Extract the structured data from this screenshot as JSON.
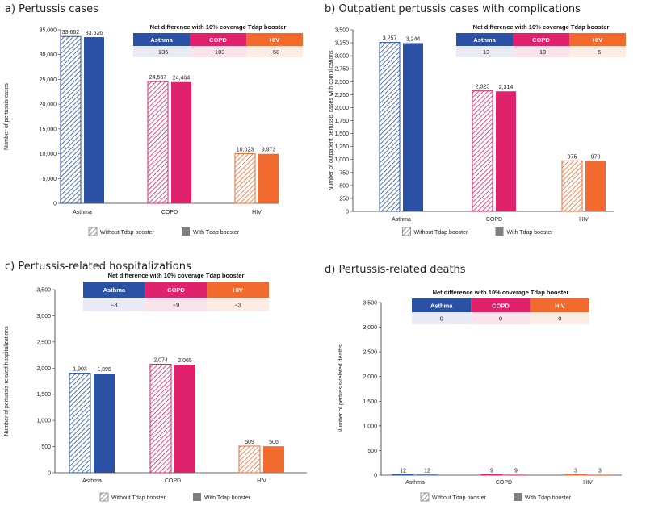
{
  "colors": {
    "Asthma": "#2a51a3",
    "COPD": "#e0216b",
    "HIV": "#f26a2e",
    "Asthma_light": "#e8ebf5",
    "COPD_light": "#fbe3ec",
    "HIV_light": "#fdece4",
    "legend_gray": "#808080"
  },
  "chart_data": [
    {
      "type": "bar",
      "title": "a) Pertussis cases",
      "ylabel": "Number of pertussis cases",
      "xlabel": "",
      "ylim": [
        0,
        35000
      ],
      "ytick_step": 5000,
      "ytick_labels": [
        "0",
        "5,000",
        "10,000",
        "15,000",
        "20,000",
        "25,000",
        "30,000",
        "35,000"
      ],
      "categories": [
        "Asthma",
        "COPD",
        "HIV"
      ],
      "series": [
        {
          "name": "Without Tdap booster",
          "values": [
            33662,
            24567,
            10023
          ],
          "labels": [
            "33,662",
            "24,567",
            "10,023"
          ]
        },
        {
          "name": "With Tdap booster",
          "values": [
            33526,
            24464,
            9973
          ],
          "labels": [
            "33,526",
            "24,464",
            "9,973"
          ]
        }
      ],
      "table": {
        "title": "Net difference with 10% coverage Tdap booster",
        "headers": [
          "Asthma",
          "COPD",
          "HIV"
        ],
        "values": [
          "−135",
          "−103",
          "−50"
        ]
      },
      "legend": [
        "Without Tdap booster",
        "With Tdap booster"
      ]
    },
    {
      "type": "bar",
      "title": "b) Outpatient pertussis cases with complications",
      "ylabel": "Number of outpatient pertussis cases with complications",
      "xlabel": "",
      "ylim": [
        0,
        3500
      ],
      "ytick_step": 250,
      "ytick_labels": [
        "0",
        "250",
        "500",
        "750",
        "1,000",
        "1,250",
        "1,500",
        "1,750",
        "2,000",
        "2,250",
        "2,500",
        "2,750",
        "3,000",
        "3,250",
        "3,500"
      ],
      "categories": [
        "Asthma",
        "COPD",
        "HIV"
      ],
      "series": [
        {
          "name": "Without Tdap booster",
          "values": [
            3257,
            2323,
            975
          ],
          "labels": [
            "3,257",
            "2,323",
            "975"
          ]
        },
        {
          "name": "With Tdap booster",
          "values": [
            3244,
            2314,
            970
          ],
          "labels": [
            "3,244",
            "2,314",
            "970"
          ]
        }
      ],
      "table": {
        "title": "Net difference with 10% coverage Tdap booster",
        "headers": [
          "Asthma",
          "COPD",
          "HIV"
        ],
        "values": [
          "−13",
          "−10",
          "−5"
        ]
      },
      "legend": [
        "Without Tdap booster",
        "With Tdap booster"
      ]
    },
    {
      "type": "bar",
      "title": "c) Pertussis-related hospitalizations",
      "ylabel": "Number of pertussis-related hospitalizations",
      "xlabel": "",
      "ylim": [
        0,
        3500
      ],
      "ytick_step": 500,
      "ytick_labels": [
        "0",
        "500",
        "1,000",
        "1,500",
        "2,000",
        "2,500",
        "3,000",
        "3,500"
      ],
      "categories": [
        "Asthma",
        "COPD",
        "HIV"
      ],
      "series": [
        {
          "name": "Without Tdap booster",
          "values": [
            1903,
            2074,
            509
          ],
          "labels": [
            "1,903",
            "2,074",
            "509"
          ]
        },
        {
          "name": "With Tdap booster",
          "values": [
            1895,
            2065,
            506
          ],
          "labels": [
            "1,895",
            "2,065",
            "506"
          ]
        }
      ],
      "table": {
        "title": "Net difference with 10% coverage Tdap booster",
        "headers": [
          "Asthma",
          "COPD",
          "HIV"
        ],
        "values": [
          "−8",
          "−9",
          "−3"
        ]
      },
      "legend": [
        "Without Tdap booster",
        "With Tdap booster"
      ]
    },
    {
      "type": "bar",
      "title": "d) Pertussis-related deaths",
      "ylabel": "Number of pertussis-related deaths",
      "xlabel": "",
      "ylim": [
        0,
        3500
      ],
      "ytick_step": 500,
      "ytick_labels": [
        "0",
        "500",
        "1,000",
        "1,500",
        "2,000",
        "2,500",
        "3,000",
        "3,500"
      ],
      "categories": [
        "Asthma",
        "COPD",
        "HIV"
      ],
      "series": [
        {
          "name": "Without Tdap booster",
          "values": [
            12,
            9,
            3
          ],
          "labels": [
            "12",
            "9",
            "3"
          ]
        },
        {
          "name": "With Tdap booster",
          "values": [
            12,
            9,
            3
          ],
          "labels": [
            "12",
            "9",
            "3"
          ]
        }
      ],
      "table": {
        "title": "Net difference with 10% coverage Tdap booster",
        "headers": [
          "Asthma",
          "COPD",
          "HIV"
        ],
        "values": [
          "0",
          "0",
          "0"
        ]
      },
      "legend": [
        "Without Tdap booster",
        "With Tdap booster"
      ]
    }
  ]
}
